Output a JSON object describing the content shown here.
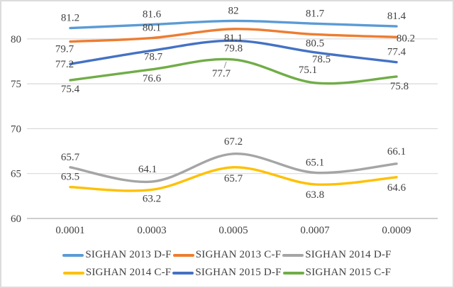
{
  "chart_data": {
    "type": "line",
    "title": "",
    "xlabel": "",
    "ylabel": "",
    "smooth": true,
    "grid": true,
    "legend_position": "bottom",
    "x_categories": [
      "0.0001",
      "0.0003",
      "0.0005",
      "0.0007",
      "0.0009"
    ],
    "y_ticks": [
      60,
      65,
      70,
      75,
      80
    ],
    "ylim": [
      60,
      83.6
    ],
    "series": [
      {
        "name": "SIGHAN 2013 D-F",
        "color": "#5B9BD5",
        "values": [
          81.2,
          81.6,
          82,
          81.7,
          81.4
        ],
        "label_pos": [
          "above",
          "above",
          "above",
          "above",
          "above"
        ]
      },
      {
        "name": "SIGHAN 2013 C-F",
        "color": "#ED7D31",
        "values": [
          79.7,
          80.1,
          81.1,
          80.5,
          80.2
        ],
        "label_pos": [
          {
            "dx": -8,
            "dy": 15
          },
          "above",
          "below",
          "below",
          {
            "dx": 13,
            "dy": 6
          }
        ]
      },
      {
        "name": "SIGHAN 2014 D-F",
        "color": "#A5A5A5",
        "values": [
          65.7,
          64.1,
          67.2,
          65.1,
          66.1
        ],
        "label_pos": [
          "above",
          {
            "dx": -6,
            "dy": -13
          },
          {
            "dx": 0,
            "dy": -13
          },
          "above",
          {
            "dx": 0,
            "dy": -13
          }
        ]
      },
      {
        "name": "SIGHAN 2014 C-F",
        "color": "#FFC000",
        "values": [
          63.5,
          63.2,
          65.7,
          63.8,
          64.6
        ],
        "label_pos": [
          "above",
          "below",
          {
            "dx": 0,
            "dy": 20
          },
          {
            "dx": 0,
            "dy": 19
          },
          {
            "dx": 0,
            "dy": 19
          }
        ]
      },
      {
        "name": "SIGHAN 2015 D-F",
        "color": "#4472C4",
        "values": [
          77.2,
          78.7,
          79.8,
          78.5,
          77.4
        ],
        "label_pos": [
          {
            "dx": -8,
            "dy": 5
          },
          {
            "dx": 2,
            "dy": 13
          },
          {
            "dx": 0,
            "dy": 15
          },
          {
            "dx": 9,
            "dy": 14
          },
          "above"
        ]
      },
      {
        "name": "SIGHAN 2015 C-F",
        "color": "#70AD47",
        "values": [
          75.4,
          76.6,
          77.7,
          75.1,
          75.8
        ],
        "label_pos": [
          "below",
          "below",
          {
            "dx": -17,
            "dy": 24,
            "leader": true
          },
          {
            "dx": -10,
            "dy": -14
          },
          {
            "dx": 4,
            "dy": 18
          }
        ]
      }
    ]
  },
  "style_colors": {
    "gridline": "#d9d9d9",
    "axis_line": "#c6c6c6",
    "text": "#3f3f3f",
    "leader": "#a6a6a6",
    "background": "#ffffff",
    "border": "#dcdcdc"
  }
}
